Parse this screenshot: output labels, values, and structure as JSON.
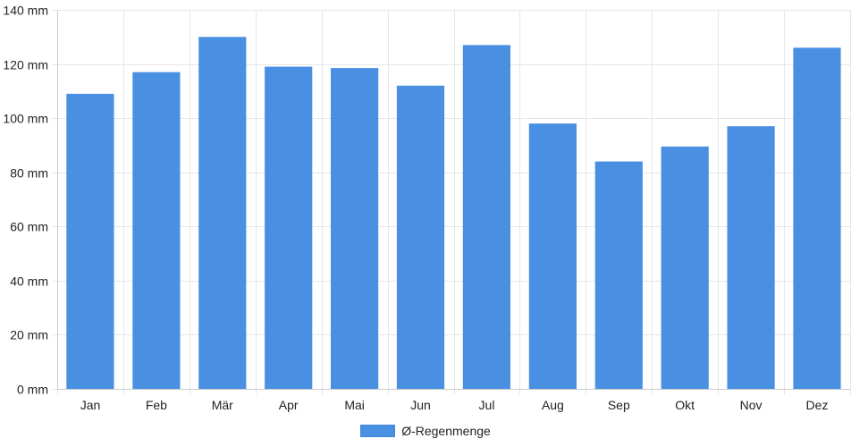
{
  "chart_data": {
    "type": "bar",
    "categories": [
      "Jan",
      "Feb",
      "Mär",
      "Apr",
      "Mai",
      "Jun",
      "Jul",
      "Aug",
      "Sep",
      "Okt",
      "Nov",
      "Dez"
    ],
    "series": [
      {
        "name": "Ø-Regenmenge",
        "values": [
          109,
          117,
          130,
          119,
          118.5,
          112,
          127,
          98,
          84,
          89.5,
          97,
          126
        ],
        "color": "#4a90e2"
      }
    ],
    "ylim": [
      0,
      140
    ],
    "yticks": [
      0,
      20,
      40,
      60,
      80,
      100,
      120,
      140
    ],
    "y_tick_suffix": " mm",
    "y_tick_labels": [
      "0 mm",
      "20 mm",
      "40 mm",
      "60 mm",
      "80 mm",
      "100 mm",
      "120 mm",
      "140 mm"
    ],
    "grid": true,
    "legend_position": "bottom-center"
  },
  "colors": {
    "bar": "#4a90e2",
    "grid": "#e6e6e6",
    "axis": "#cccccc",
    "text": "#222222"
  }
}
